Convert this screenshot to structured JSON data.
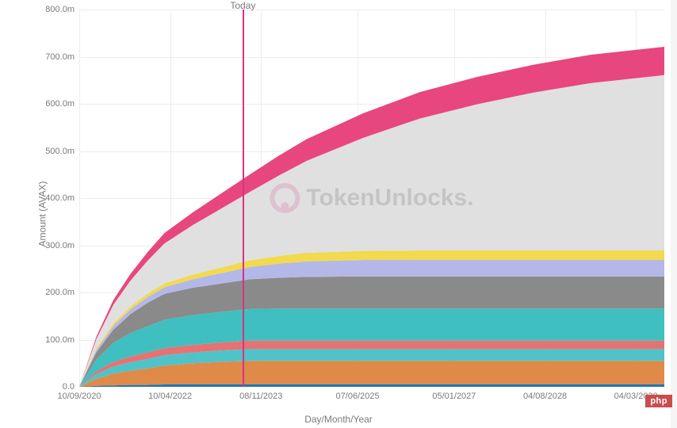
{
  "chart": {
    "type": "stacked-area",
    "ylabel": "Amount (AVAX)",
    "xlabel": "Day/Month/Year",
    "label_fontsize": 12,
    "tick_fontsize": 11,
    "tick_color": "#7a7a7a",
    "background_color": "#ffffff",
    "grid_color": "#ededed",
    "axis_color": "#cccccc",
    "ylim": [
      0,
      800
    ],
    "yticks": [
      0,
      100,
      200,
      300,
      400,
      500,
      600,
      700,
      800
    ],
    "ytick_labels": [
      "0.0",
      "100.0m",
      "200.0m",
      "300.0m",
      "400.0m",
      "500.0m",
      "600.0m",
      "700.0m",
      "800.0m"
    ],
    "xlim": [
      0,
      10.3
    ],
    "xticks_pos": [
      0,
      1.6,
      3.2,
      4.9,
      6.6,
      8.2,
      9.8
    ],
    "xtick_labels": [
      "10/09/2020",
      "10/04/2022",
      "08/11/2023",
      "07/06/2025",
      "05/01/2027",
      "04/08/2028",
      "04/03/2030"
    ],
    "today": {
      "label": "Today",
      "x": 2.88,
      "line_color": "#d63384",
      "line_width": 2
    },
    "watermark": {
      "text": "TokenUnlocks.",
      "icon_color": "#d63384",
      "opacity": 0.18
    },
    "x_values": [
      0,
      0.3,
      0.6,
      0.9,
      1.2,
      1.5,
      2.0,
      2.5,
      3.0,
      3.5,
      4.0,
      5.0,
      6.0,
      7.0,
      8.0,
      9.0,
      10.3
    ],
    "series": [
      {
        "name": "s1_blue",
        "color": "#1f77b4",
        "values": [
          0,
          2,
          3,
          4,
          4,
          5,
          5,
          5,
          5,
          5,
          5,
          5,
          5,
          5,
          5,
          5,
          5
        ]
      },
      {
        "name": "s2_orange",
        "color": "#e08a4a",
        "values": [
          0,
          15,
          25,
          30,
          35,
          40,
          45,
          48,
          50,
          50,
          50,
          50,
          50,
          50,
          50,
          50,
          50
        ]
      },
      {
        "name": "s3_teal1",
        "color": "#4fc3c7",
        "values": [
          0,
          10,
          15,
          18,
          20,
          22,
          23,
          24,
          25,
          25,
          25,
          25,
          25,
          25,
          25,
          25,
          25
        ]
      },
      {
        "name": "s4_coral",
        "color": "#e57373",
        "values": [
          0,
          6,
          10,
          12,
          14,
          15,
          16,
          17,
          18,
          18,
          18,
          18,
          18,
          18,
          18,
          18,
          18
        ]
      },
      {
        "name": "s5_teal2",
        "color": "#3fbfbf",
        "values": [
          0,
          25,
          40,
          50,
          55,
          60,
          63,
          65,
          67,
          68,
          68,
          68,
          68,
          68,
          68,
          68,
          68
        ]
      },
      {
        "name": "s6_darkgrey",
        "color": "#8a8a8a",
        "values": [
          0,
          15,
          28,
          40,
          50,
          55,
          58,
          60,
          63,
          65,
          67,
          68,
          68,
          68,
          68,
          68,
          68
        ]
      },
      {
        "name": "s7_lilac",
        "color": "#b3b8e8",
        "values": [
          0,
          5,
          8,
          10,
          12,
          14,
          18,
          22,
          26,
          30,
          33,
          35,
          35,
          35,
          35,
          35,
          35
        ]
      },
      {
        "name": "s8_yellow",
        "color": "#f2d94e",
        "values": [
          0,
          3,
          5,
          6,
          7,
          8,
          10,
          12,
          14,
          16,
          18,
          19,
          20,
          20,
          20,
          20,
          20
        ]
      },
      {
        "name": "s9_lightgrey",
        "color": "#e0e0e0",
        "values": [
          0,
          20,
          40,
          55,
          70,
          85,
          105,
          125,
          145,
          170,
          195,
          240,
          280,
          310,
          335,
          355,
          372
        ]
      },
      {
        "name": "s10_pink",
        "color": "#e8467e",
        "values": [
          0,
          5,
          10,
          14,
          18,
          22,
          27,
          32,
          37,
          42,
          46,
          52,
          56,
          58,
          59,
          60,
          60
        ]
      }
    ]
  },
  "badge": {
    "text": "php",
    "bg_color": "#c94d4d",
    "text_color": "#ffffff"
  }
}
